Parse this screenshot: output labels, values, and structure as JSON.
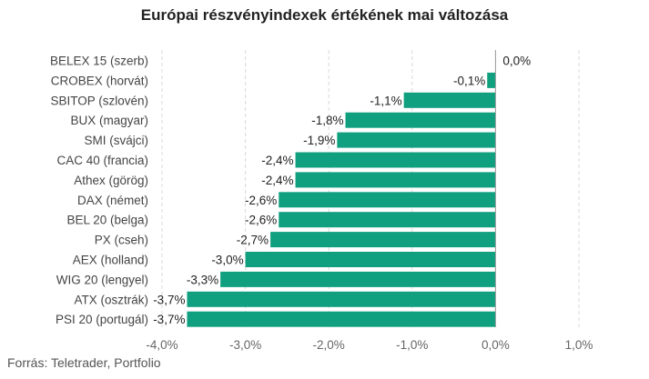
{
  "title": "Európai részvényindexek értékének mai változása",
  "source": "Forrás: Teletrader, Portfolio",
  "colors": {
    "bar": "#11a07f",
    "grid": "#d8d8d8",
    "zero_axis": "#999999"
  },
  "chart_data": {
    "type": "bar",
    "orientation": "horizontal",
    "categories": [
      "BELEX 15 (szerb)",
      "CROBEX (horvát)",
      "SBITOP (szlovén)",
      "BUX (magyar)",
      "SMI (svájci)",
      "CAC 40 (francia)",
      "Athex (görög)",
      "DAX (német)",
      "BEL 20 (belga)",
      "PX (cseh)",
      "AEX (holland)",
      "WIG 20 (lengyel)",
      "ATX (osztrák)",
      "PSI 20 (portugál)"
    ],
    "values": [
      0.0,
      -0.1,
      -1.1,
      -1.8,
      -1.9,
      -2.4,
      -2.4,
      -2.6,
      -2.6,
      -2.7,
      -3.0,
      -3.3,
      -3.7,
      -3.7
    ],
    "value_labels": [
      "0,0%",
      "-0,1%",
      "-1,1%",
      "-1,8%",
      "-1,9%",
      "-2,4%",
      "-2,4%",
      "-2,6%",
      "-2,6%",
      "-2,7%",
      "-3,0%",
      "-3,3%",
      "-3,7%",
      "-3,7%"
    ],
    "xlim": [
      -4.0,
      1.0
    ],
    "xticks": [
      -4.0,
      -3.0,
      -2.0,
      -1.0,
      0.0,
      1.0
    ],
    "xtick_labels": [
      "-4,0%",
      "-3,0%",
      "-2,0%",
      "-1,0%",
      "0,0%",
      "1,0%"
    ],
    "grid": true
  }
}
